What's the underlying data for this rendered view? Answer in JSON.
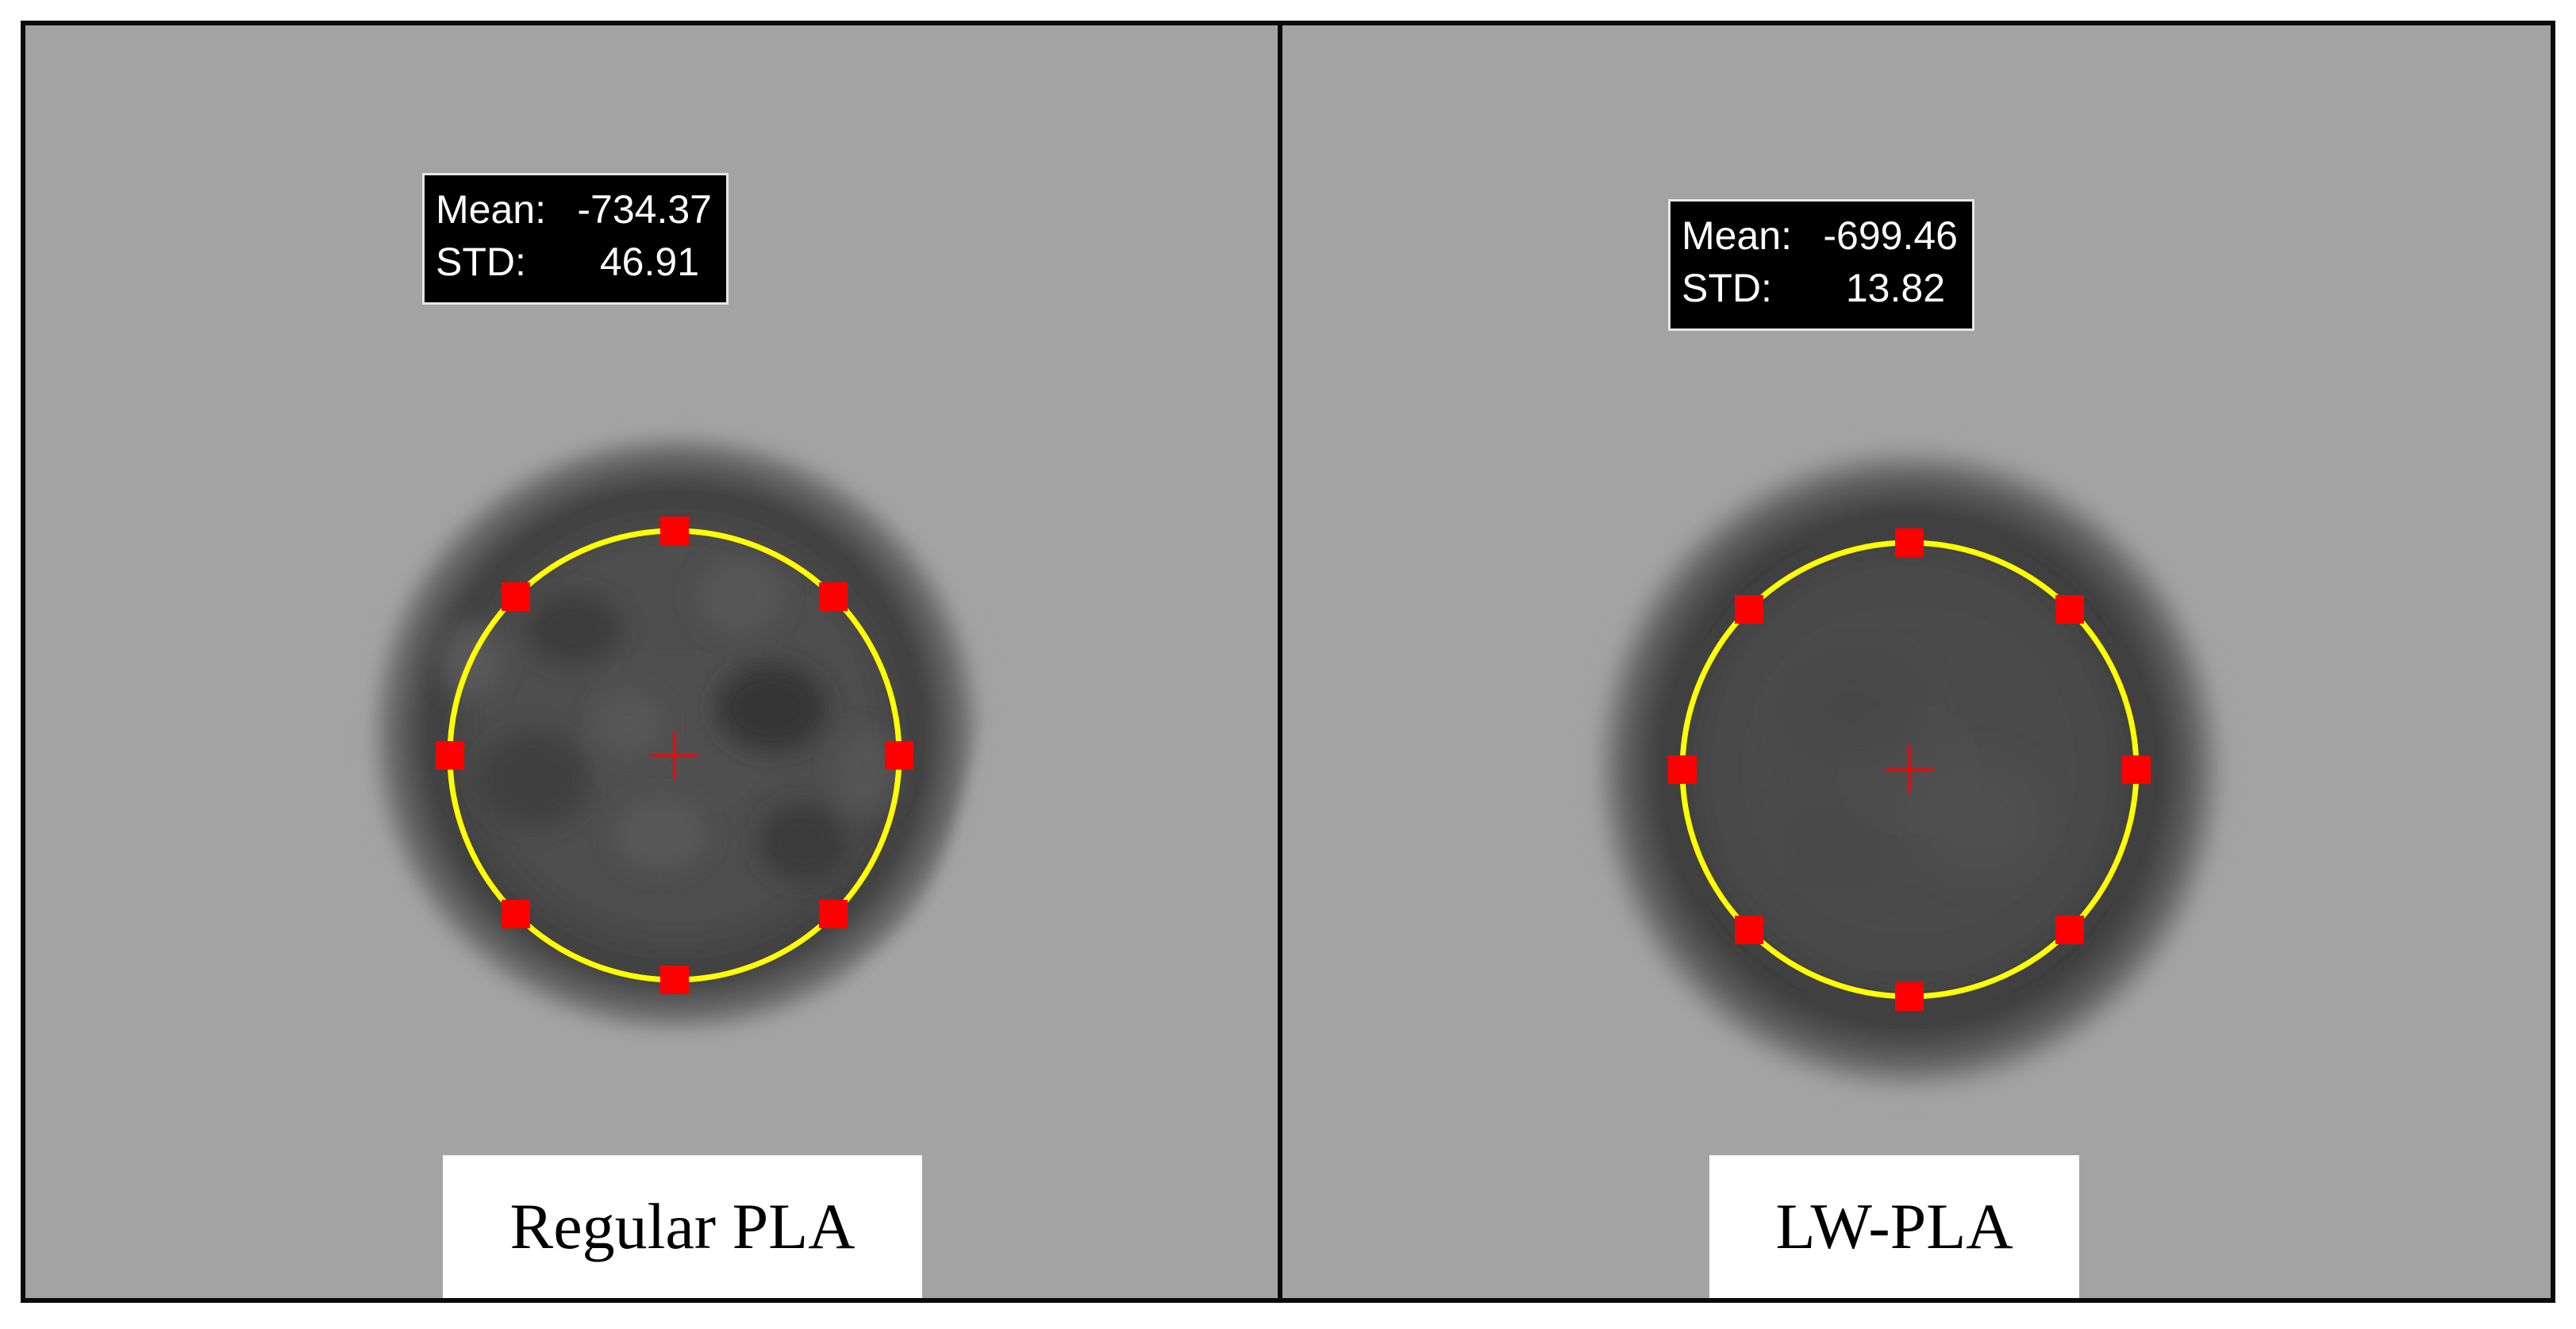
{
  "panels": [
    {
      "label": "Regular PLA",
      "stats": {
        "mean_label": "Mean:",
        "mean_value": "-734.37",
        "std_label": "STD:",
        "std_value": "46.91"
      }
    },
    {
      "label": "LW-PLA",
      "stats": {
        "mean_label": "Mean:",
        "mean_value": "-699.46",
        "std_label": "STD:",
        "std_value": "13.82"
      }
    }
  ],
  "colors": {
    "background_gray": "#a3a3a3",
    "roi_circle": "#ffff00",
    "roi_handle": "#ff0000",
    "center_cross": "#ff0000",
    "frame": "#0a0a0a"
  }
}
